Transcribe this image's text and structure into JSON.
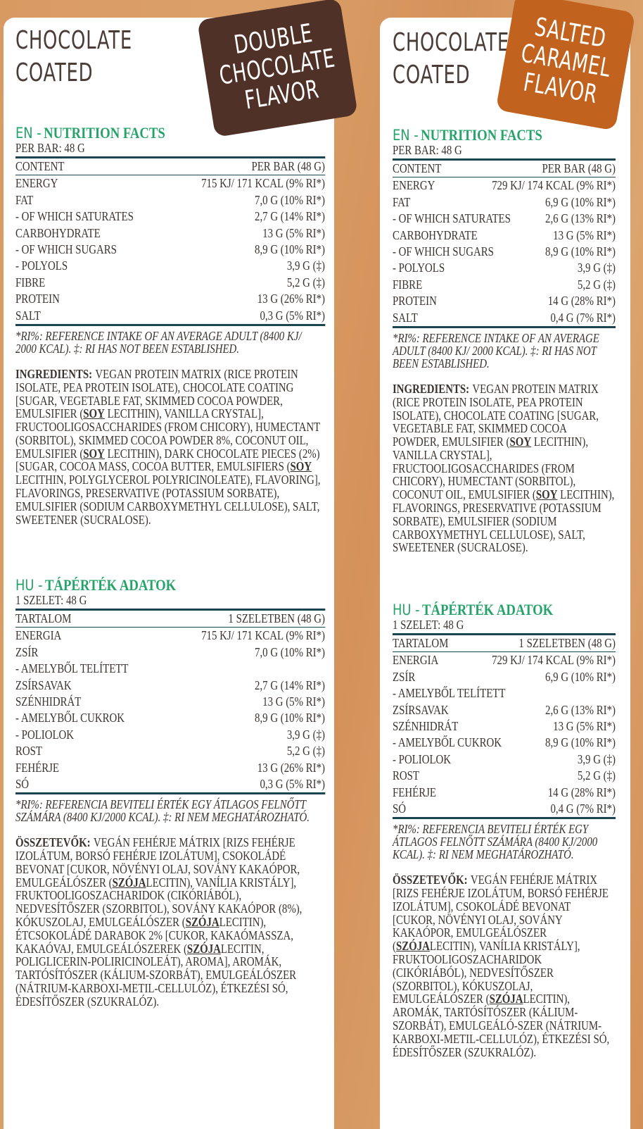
{
  "panels": [
    {
      "heading": [
        "CHOCOLATE",
        "COATED"
      ],
      "badge": [
        "DOUBLE",
        "CHOCOLATE",
        "FLAVOR"
      ],
      "sections": [
        {
          "lang": "EN -",
          "title": "NUTRITION FACTS",
          "serving": "PER BAR: 48 G",
          "header": [
            "CONTENT",
            "PER BAR (48 G)"
          ],
          "rows": [
            [
              "ENERGY",
              "715 KJ/ 171 KCAL (9% RI*)"
            ],
            [
              "FAT",
              "7,0 G (10% RI*)"
            ],
            [
              "- OF WHICH SATURATES",
              "2,7 G (14% RI*)"
            ],
            [
              "CARBOHYDRATE",
              "13 G (5% RI*)"
            ],
            [
              "- OF WHICH SUGARS",
              "8,9 G (10% RI*)"
            ],
            [
              "- POLYOLS",
              "3,9 G (‡)"
            ],
            [
              "FIBRE",
              "5,2 G (‡)"
            ],
            [
              "PROTEIN",
              "13 G (26% RI*)"
            ],
            [
              "SALT",
              "0,3 G (5% RI*)"
            ]
          ],
          "footnote": "*RI%: REFERENCE INTAKE OF AN AVERAGE ADULT (8400 KJ/ 2000 KCAL). ‡: RI HAS NOT BEEN ESTABLISHED.",
          "ingredients_label": "INGREDIENTS:",
          "ingredients": [
            "VEGAN PROTEIN MATRIX (RICE PROTEIN ISOLATE, PEA PROTEIN ISOLATE), CHOCOLATE COATING [SUGAR, VEGETABLE FAT, SKIMMED COCOA POWDER, EMULSIFIER (",
            "SOY",
            " LECITHIN), VANILLA CRYSTAL], FRUCTOOLIGOSACCHARIDES (FROM CHICORY), HUMECTANT (SORBITOL), SKIMMED COCOA POWDER 8%, COCONUT OIL, EMULSIFIER (",
            "SOY",
            " LECITHIN), DARK CHOCOLATE PIECES (2%) [SUGAR, COCOA MASS, COCOA BUTTER, EMULSIFIERS (",
            "SOY",
            " LECITHIN, POLYGLYCEROL POLYRICINOLEATE), FLAVORING], FLAVORINGS, PRESERVATIVE (POTASSIUM SORBATE), EMULSIFIER (SODIUM CARBOXYMETHYL CELLULOSE), SALT, SWEETENER (SUCRALOSE)."
          ]
        },
        {
          "lang": "HU -",
          "title": "TÁPÉRTÉK ADATOK",
          "serving": "1 SZELET: 48 G",
          "header": [
            "TARTALOM",
            "1 SZELETBEN (48 G)"
          ],
          "rows": [
            [
              "ENERGIA",
              "715 KJ/ 171 KCAL (9% RI*)"
            ],
            [
              "ZSÍR",
              "7,0 G (10% RI*)"
            ],
            [
              "- AMELYBŐL TELÍTETT"
            ],
            [
              "ZSÍRSAVAK",
              "2,7 G (14% RI*)"
            ],
            [
              "SZÉNHIDRÁT",
              "13 G (5% RI*)"
            ],
            [
              "- AMELYBŐL CUKROK",
              "8,9 G (10% RI*)"
            ],
            [
              "- POLIOLOK",
              "3,9 G (‡)"
            ],
            [
              "ROST",
              "5,2 G (‡)"
            ],
            [
              "FEHÉRJE",
              "13 G (26% RI*)"
            ],
            [
              "SÓ",
              "0,3 G (5% RI*)"
            ]
          ],
          "footnote": "*RI%: REFERENCIA BEVITELI ÉRTÉK EGY ÁTLAGOS FELNŐTT SZÁMÁRA (8400 KJ/2000 KCAL). ‡: RI NEM MEGHATÁROZHATÓ.",
          "ingredients_label": "ÖSSZETEVŐK:",
          "ingredients": [
            "VEGÁN FEHÉRJE MÁTRIX [RIZS FEHÉRJE IZOLÁTUM, BORSÓ FEHÉRJE IZOLÁTUM], CSOKOLÁDÉ BEVONAT [CUKOR, NÖVÉNYI OLAJ, SOVÁNY KAKAÓPOR, EMULGEÁLÓSZER (",
            "SZÓJA",
            "LECITIN), VANÍLIA KRISTÁLY], FRUKTOOLIGOSZACHARIDOK (CIKÓRIÁBÓL), NEDVESÍTŐSZER (SZORBITOL), SOVÁNY KAKAÓPOR (8%), KÓKUSZOLAJ, EMULGEÁLÓSZER (",
            "SZÓJA",
            "LECITIN), ÉTCSOKOLÁDÉ DARABOK 2% [CUKOR, KAKAÓMASSZA, KAKAÓVAJ, EMULGEÁLÓSZEREK (",
            "SZÓJA",
            "LECITIN, POLIGLICERIN-POLIRICINOLEÁT), AROMA], AROMÁK, TARTÓSÍTÓSZER (KÁLIUM-SZORBÁT), EMULGEÁLÓSZER (NÁTRIUM-KARBOXI-METIL-CELLULÓZ), ÉTKEZÉSI SÓ, ÉDESÍTŐSZER (SZUKRALÓZ)."
          ]
        }
      ]
    },
    {
      "heading": [
        "CHOCOLATE",
        "COATED"
      ],
      "badge": [
        "SALTED",
        "CARAMEL",
        "FLAVOR"
      ],
      "sections": [
        {
          "lang": "EN -",
          "title": "NUTRITION FACTS",
          "serving": "PER BAR: 48 G",
          "header": [
            "CONTENT",
            "PER BAR (48 G)"
          ],
          "rows": [
            [
              "ENERGY",
              "729 KJ/ 174 KCAL (9% RI*)"
            ],
            [
              "FAT",
              "6,9 G (10% RI*)"
            ],
            [
              "- OF WHICH SATURATES",
              "2,6 G (13% RI*)"
            ],
            [
              "CARBOHYDRATE",
              "13 G (5% RI*)"
            ],
            [
              "- OF WHICH SUGARS",
              "8,9 G (10% RI*)"
            ],
            [
              "- POLYOLS",
              "3,9 G (‡)"
            ],
            [
              "FIBRE",
              "5,2 G (‡)"
            ],
            [
              "PROTEIN",
              "14 G (28% RI*)"
            ],
            [
              "SALT",
              "0,4 G (7% RI*)"
            ]
          ],
          "footnote": "*RI%: REFERENCE INTAKE OF AN AVERAGE ADULT (8400 KJ/ 2000 KCAL). ‡: RI HAS NOT BEEN ESTABLISHED.",
          "ingredients_label": "INGREDIENTS:",
          "ingredients": [
            "VEGAN PROTEIN MATRIX (RICE PROTEIN ISOLATE, PEA PROTEIN ISOLATE), CHOCOLATE COATING [SUGAR, VEGETABLE FAT, SKIMMED COCOA POWDER, EMULSIFIER (",
            "SOY",
            " LECITHIN), VANILLA CRYSTAL], FRUCTOOLIGOSACCHARIDES (FROM CHICORY), HUMECTANT (SORBITOL), COCONUT OIL, EMULSIFIER (",
            "SOY",
            " LECITHIN), FLAVORINGS, PRESERVATIVE (POTASSIUM SORBATE), EMULSIFIER (SODIUM CARBOXYMETHYL CELLULOSE), SALT, SWEETENER (SUCRALOSE)."
          ]
        },
        {
          "lang": "HU -",
          "title": "TÁPÉRTÉK ADATOK",
          "serving": "1 SZELET: 48 G",
          "header": [
            "TARTALOM",
            "1 SZELETBEN (48 G)"
          ],
          "rows": [
            [
              "ENERGIA",
              "729 KJ/ 174 KCAL (9% RI*)"
            ],
            [
              "ZSÍR",
              "6,9 G (10% RI*)"
            ],
            [
              "- AMELYBŐL TELÍTETT"
            ],
            [
              "ZSÍRSAVAK",
              "2,6 G (13% RI*)"
            ],
            [
              "SZÉNHIDRÁT",
              "13 G (5% RI*)"
            ],
            [
              "- AMELYBŐL CUKROK",
              "8,9 G (10% RI*)"
            ],
            [
              "- POLIOLOK",
              "3,9 G (‡)"
            ],
            [
              "ROST",
              "5,2 G (‡)"
            ],
            [
              "FEHÉRJE",
              "14 G (28% RI*)"
            ],
            [
              "SÓ",
              "0,4 G (7% RI*)"
            ]
          ],
          "footnote": "*RI%: REFERENCIA BEVITELI ÉRTÉK EGY ÁTLAGOS FELNŐTT SZÁMÁRA (8400 KJ/2000 KCAL). ‡: RI NEM MEGHATÁROZHATÓ.",
          "ingredients_label": "ÖSSZETEVŐK:",
          "ingredients": [
            "VEGÁN FEHÉRJE MÁTRIX [RIZS FEHÉRJE IZOLÁTUM, BORSÓ FEHÉRJE IZOLÁTUM], CSOKOLÁDÉ BEVONAT [CUKOR, NÖVÉNYI OLAJ, SOVÁNY KAKAÓPOR, EMULGEÁLÓSZER (",
            "SZÓJA",
            "LECITIN), VANÍLIA KRISTÁLY], FRUKTOOLIGOSZACHARIDOK (CIKÓRIÁBÓL), NEDVESÍTŐSZER (SZORBITOL), KÓKUSZOLAJ, EMULGEÁLÓSZER (",
            "SZÓJA",
            "LECITIN), AROMÁK, TARTÓSÍTÓSZER (KÁLIUM-SZORBÁT), EMULGEÁLÓ-SZER (NÁTRIUM-KARBOXI-METIL-CELLULÓZ), ÉTKEZÉSI SÓ, ÉDESÍTŐSZER (SZUKRALÓZ)."
          ]
        }
      ]
    }
  ]
}
